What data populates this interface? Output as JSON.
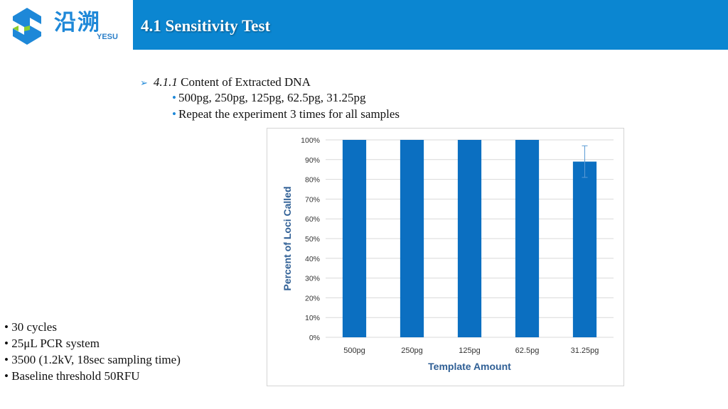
{
  "logo": {
    "cn": "沿溯",
    "en": "YESU"
  },
  "header": {
    "title": "4.1 Sensitivity Test"
  },
  "section": {
    "number": "4.1.1",
    "title": "Content of Extracted DNA",
    "bullets": [
      "500pg, 250pg, 125pg, 62.5pg, 31.25pg",
      "Repeat the experiment 3 times for all samples"
    ]
  },
  "conditions": [
    "30 cycles",
    "25μL PCR system",
    "3500 (1.2kV, 18sec sampling time)",
    "Baseline threshold 50RFU"
  ],
  "colors": {
    "header": "#0b86d1",
    "bar": "#0b6fc1",
    "accent": "#1e88d8"
  },
  "chart_data": {
    "type": "bar",
    "categories": [
      "500pg",
      "250pg",
      "125pg",
      "62.5pg",
      "31.25pg"
    ],
    "values": [
      100,
      100,
      100,
      100,
      89
    ],
    "error": [
      0,
      0,
      0,
      0,
      8
    ],
    "xlabel": "Template Amount",
    "ylabel": "Percent of Loci Called",
    "yticks": [
      "0%",
      "10%",
      "20%",
      "30%",
      "40%",
      "50%",
      "60%",
      "70%",
      "80%",
      "90%",
      "100%"
    ],
    "ylim": [
      0,
      100
    ],
    "grid": true
  }
}
